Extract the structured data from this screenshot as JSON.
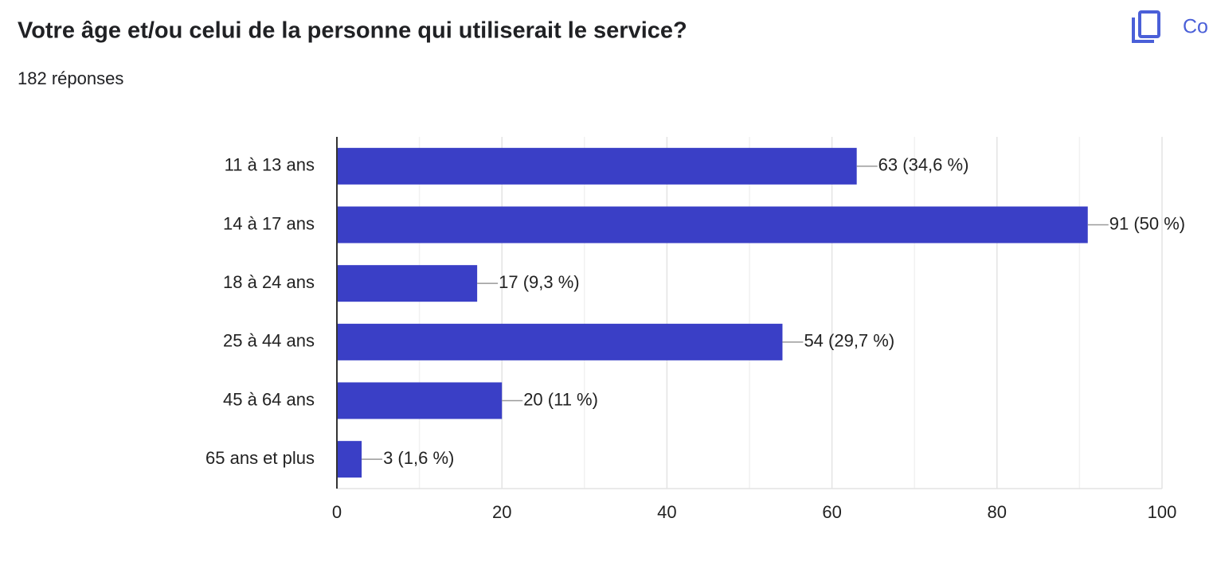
{
  "chart_data": {
    "type": "bar",
    "orientation": "horizontal",
    "title": "Votre âge et/ou celui de la personne qui utiliserait le service?",
    "subtitle": "182 réponses",
    "button_label": "Co",
    "categories": [
      "11 à 13 ans",
      "14 à 17 ans",
      "18 à 24 ans",
      "25 à 44 ans",
      "45 à 64 ans",
      "65 ans et plus"
    ],
    "values": [
      63,
      91,
      17,
      54,
      20,
      3
    ],
    "value_labels": [
      "63 (34,6 %)",
      "91 (50 %)",
      "17 (9,3 %)",
      "54 (29,7 %)",
      "20 (11 %)",
      "3 (1,6 %)"
    ],
    "color": "#3a3fc6",
    "xlim": [
      0,
      100
    ],
    "xticks": [
      0,
      20,
      40,
      60,
      80,
      100
    ],
    "x_minor_grid": [
      10,
      30,
      50,
      70,
      90
    ],
    "grid": true
  }
}
